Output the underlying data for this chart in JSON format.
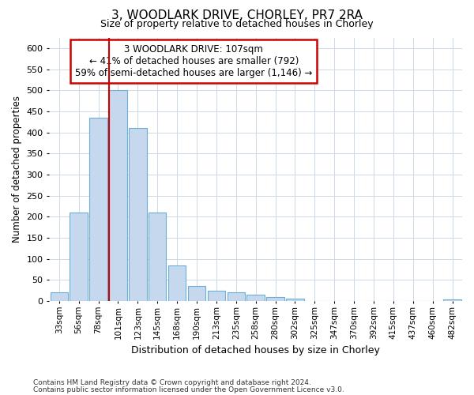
{
  "title1": "3, WOODLARK DRIVE, CHORLEY, PR7 2RA",
  "title2": "Size of property relative to detached houses in Chorley",
  "xlabel": "Distribution of detached houses by size in Chorley",
  "ylabel": "Number of detached properties",
  "footnote1": "Contains HM Land Registry data © Crown copyright and database right 2024.",
  "footnote2": "Contains public sector information licensed under the Open Government Licence v3.0.",
  "annotation_line1": "3 WOODLARK DRIVE: 107sqm",
  "annotation_line2": "← 41% of detached houses are smaller (792)",
  "annotation_line3": "59% of semi-detached houses are larger (1,146) →",
  "bar_color": "#c5d8ed",
  "bar_edge_color": "#6baed6",
  "marker_line_color": "#cc0000",
  "annotation_box_edge_color": "#cc0000",
  "background_color": "#ffffff",
  "grid_color": "#ccd9e8",
  "bins": [
    "33sqm",
    "56sqm",
    "78sqm",
    "101sqm",
    "123sqm",
    "145sqm",
    "168sqm",
    "190sqm",
    "213sqm",
    "235sqm",
    "258sqm",
    "280sqm",
    "302sqm",
    "325sqm",
    "347sqm",
    "370sqm",
    "392sqm",
    "415sqm",
    "437sqm",
    "460sqm",
    "482sqm"
  ],
  "values": [
    20,
    210,
    435,
    500,
    410,
    210,
    85,
    35,
    25,
    20,
    15,
    10,
    5,
    0,
    0,
    0,
    0,
    0,
    0,
    0,
    3
  ],
  "marker_bin_index": 3,
  "ylim": [
    0,
    625
  ],
  "yticks": [
    0,
    50,
    100,
    150,
    200,
    250,
    300,
    350,
    400,
    450,
    500,
    550,
    600
  ]
}
